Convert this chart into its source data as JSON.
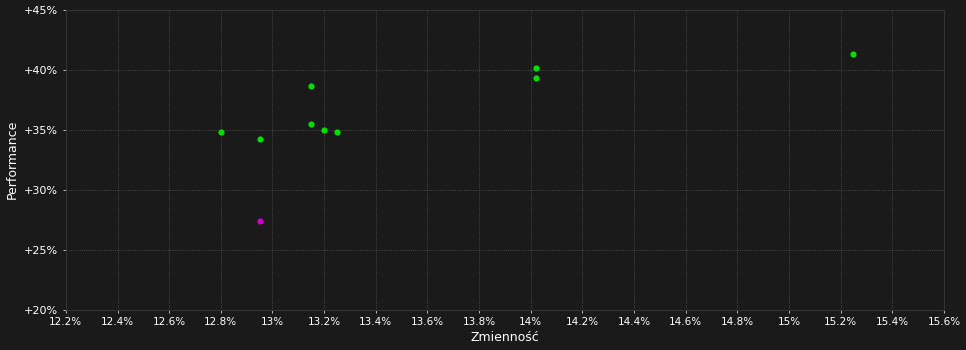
{
  "xlabel": "Zmienność",
  "ylabel": "Performance",
  "background_color": "#1a1a1a",
  "plot_bg_color": "#1a1a1a",
  "grid_color": "#555555",
  "text_color": "#ffffff",
  "xlim": [
    0.122,
    0.156
  ],
  "ylim": [
    0.2,
    0.45
  ],
  "xtick_values": [
    0.122,
    0.124,
    0.126,
    0.128,
    0.13,
    0.132,
    0.134,
    0.136,
    0.138,
    0.14,
    0.142,
    0.144,
    0.146,
    0.148,
    0.15,
    0.152,
    0.154,
    0.156
  ],
  "xtick_labels": [
    "12.2%",
    "12.4%",
    "12.6%",
    "12.8%",
    "13%",
    "13.2%",
    "13.4%",
    "13.6%",
    "13.8%",
    "14%",
    "14.2%",
    "14.4%",
    "14.6%",
    "14.8%",
    "15%",
    "15.2%",
    "15.4%",
    "15.6%"
  ],
  "ytick_values": [
    0.2,
    0.25,
    0.3,
    0.35,
    0.4,
    0.45
  ],
  "ytick_labels": [
    "+20%",
    "+25%",
    "+30%",
    "+35%",
    "+40%",
    "+45%"
  ],
  "green_points": [
    [
      0.128,
      0.348
    ],
    [
      0.1295,
      0.342
    ],
    [
      0.1315,
      0.386
    ],
    [
      0.1315,
      0.355
    ],
    [
      0.132,
      0.35
    ],
    [
      0.1325,
      0.348
    ],
    [
      0.1402,
      0.401
    ],
    [
      0.1402,
      0.393
    ],
    [
      0.1525,
      0.413
    ]
  ],
  "magenta_points": [
    [
      0.1295,
      0.274
    ]
  ],
  "point_size": 20,
  "point_color_green": "#00dd00",
  "point_color_magenta": "#cc00cc"
}
